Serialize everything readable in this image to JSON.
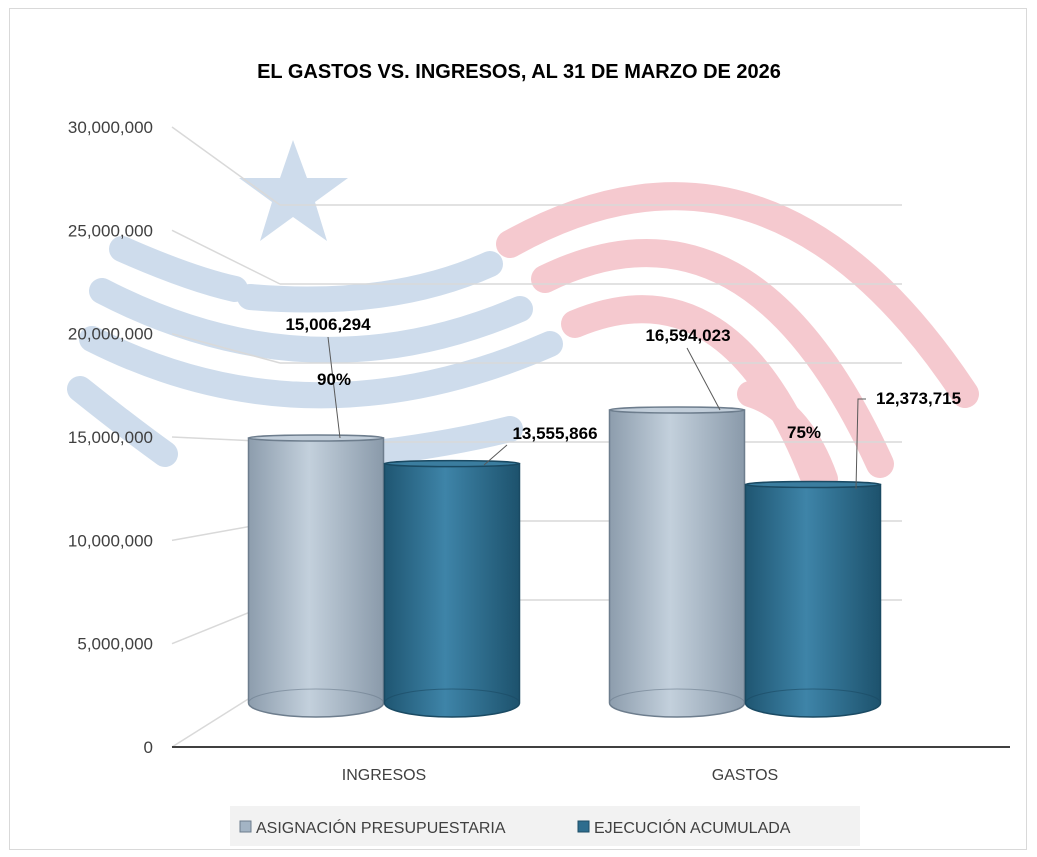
{
  "chart_data": {
    "type": "bar",
    "title": "EL GASTOS VS. INGRESOS, AL 31 DE MARZO DE 2026",
    "categories": [
      "INGRESOS",
      "GASTOS"
    ],
    "series": [
      {
        "name": "ASIGNACIÓN PRESUPUESTARIA",
        "values": [
          15006294,
          16594023
        ],
        "color": "#a3b4c4"
      },
      {
        "name": "EJECUCIÓN ACUMULADA",
        "values": [
          13555866,
          12373715
        ],
        "color": "#2e6d8e"
      }
    ],
    "value_labels": [
      [
        "15,006,294",
        "16,594,023"
      ],
      [
        "13,555,866",
        "12,373,715"
      ]
    ],
    "percent_labels": [
      "90%",
      "75%"
    ],
    "yticks": [
      "0",
      "5,000,000",
      "10,000,000",
      "15,000,000",
      "20,000,000",
      "25,000,000",
      "30,000,000"
    ],
    "ylim": [
      0,
      30000000
    ],
    "grid": true,
    "legend_position": "bottom",
    "style": "3d-cylinder",
    "colors": {
      "grid": "#d9d9d9",
      "axis": "#404040",
      "flag_blue": "#c9d9ea",
      "flag_red": "#f4c4ca"
    }
  }
}
